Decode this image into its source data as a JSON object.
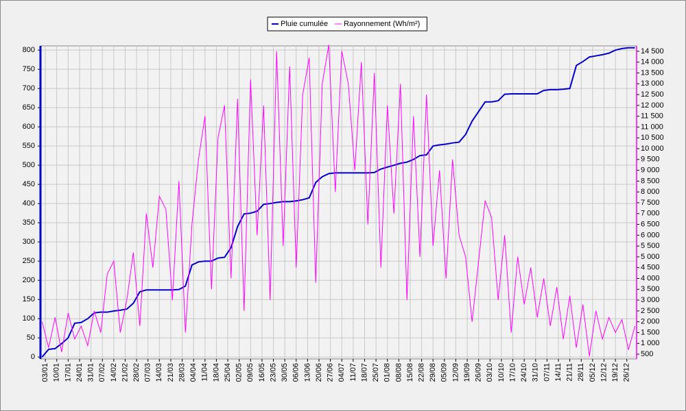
{
  "chart_data": {
    "type": "line",
    "x": [
      1,
      5,
      9,
      13,
      17,
      21,
      25,
      29,
      33,
      37,
      41,
      45,
      49,
      53,
      57,
      61,
      65,
      69,
      73,
      77,
      81,
      85,
      89,
      93,
      97,
      101,
      105,
      109,
      113,
      117,
      121,
      125,
      129,
      133,
      137,
      141,
      145,
      149,
      153,
      157,
      161,
      165,
      169,
      173,
      177,
      181,
      185,
      189,
      193,
      197,
      201,
      205,
      209,
      213,
      217,
      221,
      225,
      229,
      233,
      237,
      241,
      245,
      249,
      253,
      257,
      261,
      265,
      269,
      273,
      277,
      281,
      285,
      289,
      293,
      297,
      301,
      305,
      309,
      313,
      317,
      321,
      325,
      329,
      333,
      337,
      341,
      345,
      349,
      353,
      357,
      361,
      365
    ],
    "series": [
      {
        "name": "Pluie cumulée",
        "color": "#0000cc",
        "axis": "y",
        "values": [
          0,
          20,
          22,
          35,
          50,
          88,
          90,
          100,
          115,
          117,
          117,
          120,
          122,
          125,
          140,
          170,
          175,
          175,
          175,
          175,
          175,
          176,
          185,
          240,
          248,
          250,
          250,
          258,
          260,
          285,
          340,
          373,
          375,
          380,
          398,
          400,
          403,
          405,
          405,
          407,
          410,
          415,
          455,
          470,
          478,
          480,
          480,
          480,
          480,
          480,
          480,
          481,
          490,
          495,
          500,
          505,
          508,
          515,
          525,
          527,
          550,
          553,
          555,
          558,
          560,
          580,
          615,
          640,
          665,
          665,
          668,
          685,
          686,
          686,
          686,
          686,
          686,
          695,
          697,
          697,
          698,
          700,
          760,
          770,
          782,
          785,
          788,
          792,
          800,
          804,
          806,
          806
        ]
      },
      {
        "name": "Rayonnement (Wh/m²)",
        "color": "#ff00ff",
        "axis": "y2",
        "values": [
          2000,
          800,
          2200,
          600,
          2400,
          1200,
          1800,
          900,
          2500,
          1500,
          4200,
          4800,
          1500,
          3000,
          5200,
          1800,
          7000,
          4500,
          7800,
          7200,
          3000,
          8500,
          1500,
          6500,
          9500,
          11500,
          3500,
          10500,
          12000,
          4000,
          12300,
          2500,
          13200,
          6000,
          12000,
          3000,
          14500,
          5500,
          13800,
          4500,
          12500,
          14200,
          3800,
          13000,
          14800,
          8000,
          14500,
          13000,
          9000,
          14000,
          6500,
          13500,
          4500,
          12000,
          7000,
          13000,
          3000,
          11500,
          5000,
          12500,
          5500,
          9000,
          4000,
          9500,
          6000,
          5000,
          2000,
          4800,
          7600,
          6800,
          3000,
          6000,
          1500,
          5000,
          2800,
          4500,
          2200,
          4000,
          1800,
          3600,
          1200,
          3200,
          800,
          2800,
          400,
          2500,
          1200,
          2200,
          1500,
          2100,
          700,
          1800
        ]
      }
    ],
    "xlim": [
      0,
      366
    ],
    "xticks": [
      {
        "value": 3,
        "label": "03/01"
      },
      {
        "value": 10,
        "label": "10/01"
      },
      {
        "value": 17,
        "label": "17/01"
      },
      {
        "value": 24,
        "label": "24/01"
      },
      {
        "value": 31,
        "label": "31/01"
      },
      {
        "value": 38,
        "label": "07/02"
      },
      {
        "value": 45,
        "label": "14/02"
      },
      {
        "value": 52,
        "label": "21/02"
      },
      {
        "value": 59,
        "label": "28/02"
      },
      {
        "value": 66,
        "label": "07/03"
      },
      {
        "value": 73,
        "label": "14/03"
      },
      {
        "value": 80,
        "label": "21/03"
      },
      {
        "value": 87,
        "label": "28/03"
      },
      {
        "value": 94,
        "label": "04/04"
      },
      {
        "value": 101,
        "label": "11/04"
      },
      {
        "value": 108,
        "label": "18/04"
      },
      {
        "value": 115,
        "label": "25/04"
      },
      {
        "value": 122,
        "label": "02/05"
      },
      {
        "value": 129,
        "label": "09/05"
      },
      {
        "value": 136,
        "label": "16/05"
      },
      {
        "value": 143,
        "label": "23/05"
      },
      {
        "value": 150,
        "label": "30/05"
      },
      {
        "value": 157,
        "label": "06/06"
      },
      {
        "value": 164,
        "label": "13/06"
      },
      {
        "value": 171,
        "label": "20/06"
      },
      {
        "value": 178,
        "label": "27/06"
      },
      {
        "value": 185,
        "label": "04/07"
      },
      {
        "value": 192,
        "label": "11/07"
      },
      {
        "value": 199,
        "label": "18/07"
      },
      {
        "value": 206,
        "label": "25/07"
      },
      {
        "value": 213,
        "label": "01/08"
      },
      {
        "value": 220,
        "label": "08/08"
      },
      {
        "value": 227,
        "label": "15/08"
      },
      {
        "value": 234,
        "label": "22/08"
      },
      {
        "value": 241,
        "label": "29/08"
      },
      {
        "value": 248,
        "label": "05/09"
      },
      {
        "value": 255,
        "label": "12/09"
      },
      {
        "value": 262,
        "label": "19/09"
      },
      {
        "value": 269,
        "label": "26/09"
      },
      {
        "value": 276,
        "label": "03/10"
      },
      {
        "value": 283,
        "label": "10/10"
      },
      {
        "value": 290,
        "label": "17/10"
      },
      {
        "value": 297,
        "label": "24/10"
      },
      {
        "value": 304,
        "label": "31/10"
      },
      {
        "value": 311,
        "label": "07/11"
      },
      {
        "value": 318,
        "label": "14/11"
      },
      {
        "value": 325,
        "label": "21/11"
      },
      {
        "value": 332,
        "label": "28/11"
      },
      {
        "value": 339,
        "label": "05/12"
      },
      {
        "value": 346,
        "label": "12/12"
      },
      {
        "value": 353,
        "label": "19/12"
      },
      {
        "value": 360,
        "label": "26/12"
      }
    ],
    "ylim": [
      -5,
      811
    ],
    "yticks": [
      0,
      50,
      100,
      150,
      200,
      250,
      300,
      350,
      400,
      450,
      500,
      550,
      600,
      650,
      700,
      750,
      800
    ],
    "y2lim": [
      280,
      14750
    ],
    "y2ticks": [
      500,
      {
        "value": 1000,
        "label": "1 000"
      },
      {
        "value": 1500,
        "label": "1 500"
      },
      {
        "value": 2000,
        "label": "2 000"
      },
      {
        "value": 2500,
        "label": "2 500"
      },
      {
        "value": 3000,
        "label": "3 000"
      },
      {
        "value": 3500,
        "label": "3 500"
      },
      {
        "value": 4000,
        "label": "4 000"
      },
      {
        "value": 4500,
        "label": "4 500"
      },
      {
        "value": 5000,
        "label": "5 000"
      },
      {
        "value": 5500,
        "label": "5 500"
      },
      {
        "value": 6000,
        "label": "6 000"
      },
      {
        "value": 6500,
        "label": "6 500"
      },
      {
        "value": 7000,
        "label": "7 000"
      },
      {
        "value": 7500,
        "label": "7 500"
      },
      {
        "value": 8000,
        "label": "8 000"
      },
      {
        "value": 8500,
        "label": "8 500"
      },
      {
        "value": 9000,
        "label": "9 000"
      },
      {
        "value": 9500,
        "label": "9 500"
      },
      {
        "value": 10000,
        "label": "10 000"
      },
      {
        "value": 10500,
        "label": "10 500"
      },
      {
        "value": 11000,
        "label": "11 000"
      },
      {
        "value": 11500,
        "label": "11 500"
      },
      {
        "value": 12000,
        "label": "12 000"
      },
      {
        "value": 12500,
        "label": "12 500"
      },
      {
        "value": 13000,
        "label": "13 000"
      },
      {
        "value": 13500,
        "label": "13 500"
      },
      {
        "value": 14000,
        "label": "14 000"
      },
      {
        "value": 14500,
        "label": "14 500"
      }
    ],
    "grid": true,
    "legend": "top"
  }
}
